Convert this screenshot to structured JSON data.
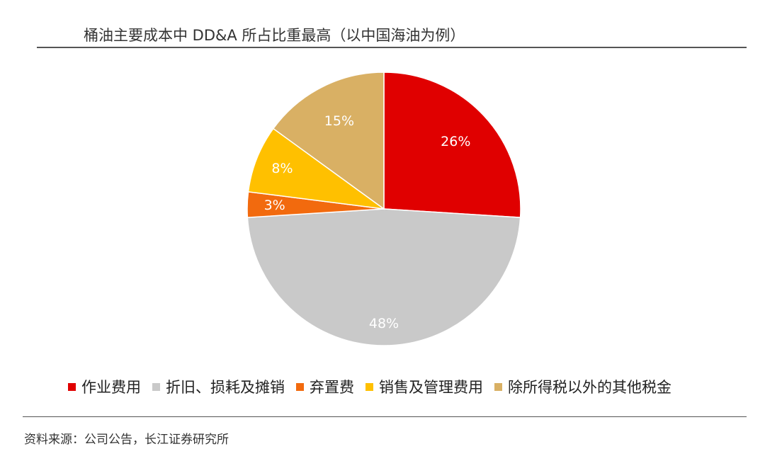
{
  "title": "桶油主要成本中 DD&A 所占比重最高（以中国海油为例）",
  "source": "资料来源：公司公告，长江证券研究所",
  "chart_data": {
    "type": "pie",
    "title": "桶油主要成本中 DD&A 所占比重最高（以中国海油为例）",
    "slices": [
      {
        "name": "作业费用",
        "value": 26,
        "label": "26%",
        "color": "#e00000",
        "label_color": "#ffffff"
      },
      {
        "name": "折旧、损耗及摊销",
        "value": 48,
        "label": "48%",
        "color": "#c9c9c9",
        "label_color": "#ffffff"
      },
      {
        "name": "弃置费",
        "value": 3,
        "label": "3%",
        "color": "#f26a0e",
        "label_color": "#ffffff"
      },
      {
        "name": "销售及管理费用",
        "value": 8,
        "label": "8%",
        "color": "#ffc000",
        "label_color": "#ffffff"
      },
      {
        "name": "除所得税以外的其他税金",
        "value": 15,
        "label": "15%",
        "color": "#d9b064",
        "label_color": "#ffffff"
      }
    ],
    "start_angle": "12 o'clock",
    "direction": "clockwise",
    "legend_position": "bottom"
  }
}
